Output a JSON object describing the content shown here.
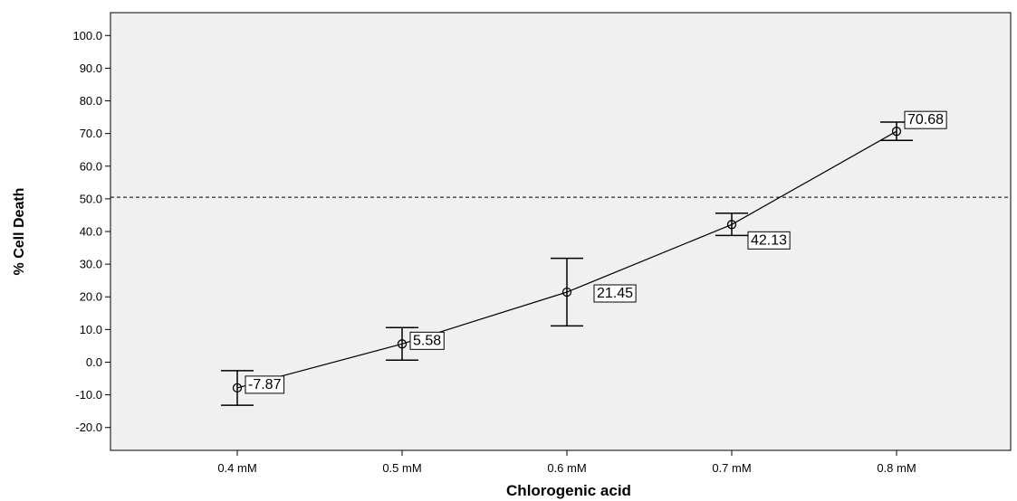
{
  "chart_data": {
    "type": "line",
    "title": "",
    "xlabel": "Chlorogenic acid",
    "ylabel": "% Cell Death",
    "categories": [
      "0.4 mM",
      "0.5 mM",
      "0.6 mM",
      "0.7 mM",
      "0.8 mM"
    ],
    "values": [
      -7.87,
      5.58,
      21.45,
      42.13,
      70.68
    ],
    "data_labels": [
      "-7.87",
      "5.58",
      "21.45",
      "42.13",
      "70.68"
    ],
    "error_bars": [
      {
        "low": -13.2,
        "high": -2.6
      },
      {
        "low": 0.6,
        "high": 10.6
      },
      {
        "low": 11.1,
        "high": 31.8
      },
      {
        "low": 38.8,
        "high": 45.6
      },
      {
        "low": 67.9,
        "high": 73.5
      }
    ],
    "yticks": [
      -20,
      -10,
      0,
      10,
      20,
      30,
      40,
      50,
      60,
      70,
      80,
      90,
      100
    ],
    "ytick_labels": [
      "-20.0",
      "-10.0",
      "0.0",
      "10.0",
      "20.0",
      "30.0",
      "40.0",
      "50.0",
      "60.0",
      "70.0",
      "80.0",
      "90.0",
      "100.0"
    ],
    "ylim": [
      -27,
      107
    ],
    "reference_line": {
      "y": 50.5,
      "style": "dashed"
    },
    "grid": false,
    "marker": "open-circle",
    "colors": {
      "plot_background": "#f0f0f0",
      "line": "#000000"
    }
  }
}
